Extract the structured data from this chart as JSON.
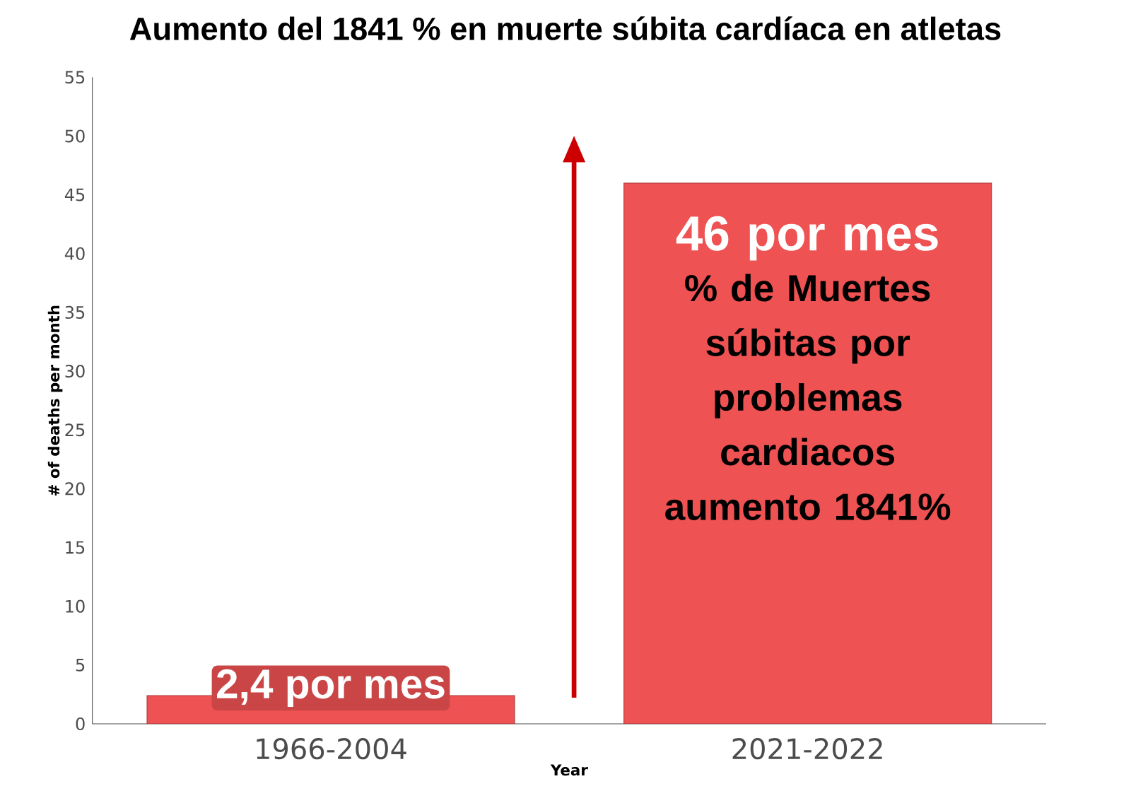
{
  "chart_data": {
    "type": "bar",
    "title": "Aumento del 1841 % en muerte súbita cardíaca en atletas",
    "xlabel": "Year",
    "ylabel": "# of deaths per month",
    "categories": [
      "1966-2004",
      "2021-2022"
    ],
    "values": [
      2.4,
      46
    ],
    "color": "#ee5252",
    "value_labels": [
      "2,4 por mes",
      "46 por mes"
    ],
    "ylim": [
      0,
      55
    ],
    "yticks": [
      0,
      5,
      10,
      15,
      20,
      25,
      30,
      35,
      40,
      45,
      50,
      55
    ],
    "annotations": [
      "% de Muertes súbitas por problemas cardiacos aumento 1841%"
    ]
  }
}
